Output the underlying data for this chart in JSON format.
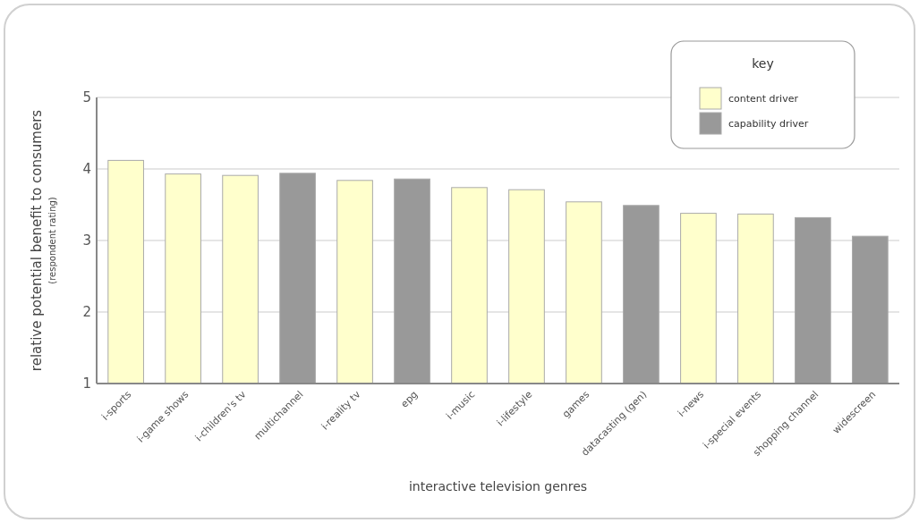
{
  "chart_data": {
    "type": "bar",
    "xlabel": "interactive television genres",
    "ylabel": "relative potential benefit to consumers\n(respondent rating)",
    "categories": [
      "i-sports",
      "i-game shows",
      "i-children's tv",
      "multichannel",
      "i-reality tv",
      "epg",
      "i-music",
      "i-lifestyle",
      "games",
      "datacasting (gen)",
      "i-news",
      "i-special events",
      "shopping channel",
      "widescreen"
    ],
    "series": [
      {
        "name": "content driver",
        "color": "#ffffcc",
        "values": [
          4.12,
          3.93,
          3.91,
          null,
          3.84,
          null,
          3.74,
          3.71,
          3.54,
          null,
          3.38,
          3.37,
          null,
          null
        ]
      },
      {
        "name": "capability driver",
        "color": "#999999",
        "values": [
          null,
          null,
          null,
          3.94,
          null,
          3.86,
          null,
          null,
          null,
          3.49,
          null,
          null,
          3.32,
          3.06
        ]
      }
    ],
    "ylim": [
      1,
      5
    ],
    "yticks": [
      1,
      2,
      3,
      4,
      5
    ],
    "grid": "y",
    "legend": "top right",
    "legend_title": "key"
  }
}
